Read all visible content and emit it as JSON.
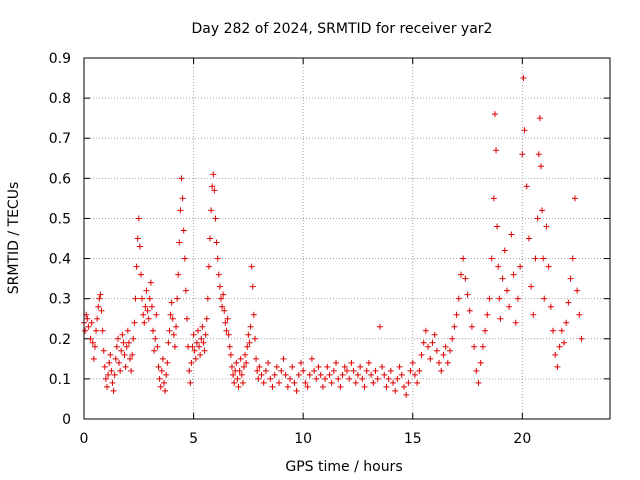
{
  "chart_data": {
    "type": "scatter",
    "title": "Day 282 of 2024, SRMTID for receiver yar2",
    "xlabel": "GPS time / hours",
    "ylabel": "SRMTID / TECUs",
    "xlim": [
      0,
      24
    ],
    "ylim": [
      0,
      0.9
    ],
    "xticks": [
      0,
      5,
      10,
      15,
      20
    ],
    "yticks": [
      0,
      0.1,
      0.2,
      0.3,
      0.4,
      0.5,
      0.6,
      0.7,
      0.8,
      0.9
    ],
    "xtick_labels": [
      "0",
      "5",
      "10",
      "15",
      "20"
    ],
    "ytick_labels": [
      "0",
      "0.1",
      "0.2",
      "0.3",
      "0.4",
      "0.5",
      "0.6",
      "0.7",
      "0.8",
      "0.9"
    ],
    "grid": true,
    "marker": "+",
    "color": "#e00000",
    "series": [
      {
        "name": "yar2",
        "points": [
          [
            0.0,
            0.24
          ],
          [
            0.05,
            0.22
          ],
          [
            0.1,
            0.26
          ],
          [
            0.15,
            0.25
          ],
          [
            0.2,
            0.23
          ],
          [
            0.3,
            0.2
          ],
          [
            0.35,
            0.24
          ],
          [
            0.4,
            0.19
          ],
          [
            0.45,
            0.15
          ],
          [
            0.5,
            0.18
          ],
          [
            0.55,
            0.22
          ],
          [
            0.6,
            0.25
          ],
          [
            0.65,
            0.28
          ],
          [
            0.7,
            0.3
          ],
          [
            0.75,
            0.31
          ],
          [
            0.8,
            0.27
          ],
          [
            0.85,
            0.22
          ],
          [
            0.9,
            0.17
          ],
          [
            0.95,
            0.13
          ],
          [
            1.0,
            0.1
          ],
          [
            1.05,
            0.08
          ],
          [
            1.1,
            0.11
          ],
          [
            1.15,
            0.14
          ],
          [
            1.2,
            0.16
          ],
          [
            1.25,
            0.12
          ],
          [
            1.3,
            0.09
          ],
          [
            1.35,
            0.07
          ],
          [
            1.4,
            0.11
          ],
          [
            1.45,
            0.15
          ],
          [
            1.5,
            0.18
          ],
          [
            1.55,
            0.2
          ],
          [
            1.6,
            0.14
          ],
          [
            1.65,
            0.12
          ],
          [
            1.7,
            0.17
          ],
          [
            1.75,
            0.21
          ],
          [
            1.8,
            0.19
          ],
          [
            1.85,
            0.16
          ],
          [
            1.9,
            0.13
          ],
          [
            1.95,
            0.18
          ],
          [
            2.0,
            0.22
          ],
          [
            2.05,
            0.19
          ],
          [
            2.1,
            0.15
          ],
          [
            2.15,
            0.12
          ],
          [
            2.2,
            0.16
          ],
          [
            2.25,
            0.2
          ],
          [
            2.3,
            0.24
          ],
          [
            2.35,
            0.3
          ],
          [
            2.4,
            0.38
          ],
          [
            2.45,
            0.45
          ],
          [
            2.5,
            0.5
          ],
          [
            2.55,
            0.43
          ],
          [
            2.6,
            0.36
          ],
          [
            2.65,
            0.3
          ],
          [
            2.7,
            0.26
          ],
          [
            2.75,
            0.24
          ],
          [
            2.8,
            0.28
          ],
          [
            2.85,
            0.32
          ],
          [
            2.9,
            0.27
          ],
          [
            2.95,
            0.25
          ],
          [
            3.0,
            0.3
          ],
          [
            3.05,
            0.34
          ],
          [
            3.1,
            0.28
          ],
          [
            3.15,
            0.22
          ],
          [
            3.2,
            0.17
          ],
          [
            3.25,
            0.2
          ],
          [
            3.3,
            0.26
          ],
          [
            3.35,
            0.18
          ],
          [
            3.4,
            0.13
          ],
          [
            3.45,
            0.1
          ],
          [
            3.5,
            0.08
          ],
          [
            3.55,
            0.12
          ],
          [
            3.6,
            0.15
          ],
          [
            3.65,
            0.09
          ],
          [
            3.7,
            0.07
          ],
          [
            3.75,
            0.11
          ],
          [
            3.8,
            0.14
          ],
          [
            3.85,
            0.19
          ],
          [
            3.9,
            0.22
          ],
          [
            3.95,
            0.26
          ],
          [
            4.0,
            0.29
          ],
          [
            4.05,
            0.25
          ],
          [
            4.1,
            0.21
          ],
          [
            4.15,
            0.18
          ],
          [
            4.2,
            0.23
          ],
          [
            4.25,
            0.3
          ],
          [
            4.3,
            0.36
          ],
          [
            4.35,
            0.44
          ],
          [
            4.4,
            0.52
          ],
          [
            4.45,
            0.6
          ],
          [
            4.5,
            0.55
          ],
          [
            4.55,
            0.47
          ],
          [
            4.6,
            0.4
          ],
          [
            4.65,
            0.32
          ],
          [
            4.7,
            0.25
          ],
          [
            4.75,
            0.18
          ],
          [
            4.8,
            0.12
          ],
          [
            4.85,
            0.09
          ],
          [
            4.9,
            0.14
          ],
          [
            4.95,
            0.18
          ],
          [
            5.0,
            0.21
          ],
          [
            5.05,
            0.17
          ],
          [
            5.1,
            0.15
          ],
          [
            5.15,
            0.19
          ],
          [
            5.2,
            0.22
          ],
          [
            5.25,
            0.18
          ],
          [
            5.3,
            0.16
          ],
          [
            5.35,
            0.2
          ],
          [
            5.4,
            0.23
          ],
          [
            5.45,
            0.19
          ],
          [
            5.5,
            0.17
          ],
          [
            5.55,
            0.21
          ],
          [
            5.6,
            0.25
          ],
          [
            5.65,
            0.3
          ],
          [
            5.7,
            0.38
          ],
          [
            5.75,
            0.45
          ],
          [
            5.8,
            0.52
          ],
          [
            5.85,
            0.58
          ],
          [
            5.9,
            0.61
          ],
          [
            5.95,
            0.57
          ],
          [
            6.0,
            0.5
          ],
          [
            6.05,
            0.44
          ],
          [
            6.1,
            0.4
          ],
          [
            6.15,
            0.36
          ],
          [
            6.2,
            0.33
          ],
          [
            6.25,
            0.3
          ],
          [
            6.3,
            0.28
          ],
          [
            6.35,
            0.31
          ],
          [
            6.4,
            0.27
          ],
          [
            6.45,
            0.24
          ],
          [
            6.5,
            0.22
          ],
          [
            6.55,
            0.25
          ],
          [
            6.6,
            0.21
          ],
          [
            6.65,
            0.18
          ],
          [
            6.7,
            0.16
          ],
          [
            6.75,
            0.13
          ],
          [
            6.8,
            0.11
          ],
          [
            6.85,
            0.09
          ],
          [
            6.9,
            0.12
          ],
          [
            6.95,
            0.14
          ],
          [
            7.0,
            0.1
          ],
          [
            7.05,
            0.08
          ],
          [
            7.1,
            0.12
          ],
          [
            7.15,
            0.15
          ],
          [
            7.2,
            0.11
          ],
          [
            7.25,
            0.09
          ],
          [
            7.3,
            0.13
          ],
          [
            7.35,
            0.16
          ],
          [
            7.4,
            0.14
          ],
          [
            7.45,
            0.18
          ],
          [
            7.5,
            0.21
          ],
          [
            7.55,
            0.19
          ],
          [
            7.6,
            0.23
          ],
          [
            7.65,
            0.38
          ],
          [
            7.7,
            0.33
          ],
          [
            7.75,
            0.26
          ],
          [
            7.8,
            0.2
          ],
          [
            7.85,
            0.15
          ],
          [
            7.9,
            0.12
          ],
          [
            7.95,
            0.1
          ],
          [
            8.0,
            0.13
          ],
          [
            8.1,
            0.11
          ],
          [
            8.2,
            0.09
          ],
          [
            8.3,
            0.12
          ],
          [
            8.4,
            0.14
          ],
          [
            8.5,
            0.1
          ],
          [
            8.6,
            0.08
          ],
          [
            8.7,
            0.11
          ],
          [
            8.8,
            0.13
          ],
          [
            8.9,
            0.09
          ],
          [
            9.0,
            0.12
          ],
          [
            9.1,
            0.15
          ],
          [
            9.2,
            0.11
          ],
          [
            9.3,
            0.08
          ],
          [
            9.4,
            0.1
          ],
          [
            9.5,
            0.13
          ],
          [
            9.6,
            0.09
          ],
          [
            9.7,
            0.07
          ],
          [
            9.8,
            0.11
          ],
          [
            9.9,
            0.14
          ],
          [
            10.0,
            0.12
          ],
          [
            10.1,
            0.09
          ],
          [
            10.2,
            0.08
          ],
          [
            10.3,
            0.11
          ],
          [
            10.4,
            0.15
          ],
          [
            10.5,
            0.12
          ],
          [
            10.6,
            0.1
          ],
          [
            10.7,
            0.13
          ],
          [
            10.8,
            0.11
          ],
          [
            10.9,
            0.08
          ],
          [
            11.0,
            0.1
          ],
          [
            11.1,
            0.13
          ],
          [
            11.2,
            0.11
          ],
          [
            11.3,
            0.09
          ],
          [
            11.4,
            0.12
          ],
          [
            11.5,
            0.14
          ],
          [
            11.6,
            0.1
          ],
          [
            11.7,
            0.08
          ],
          [
            11.8,
            0.11
          ],
          [
            11.9,
            0.13
          ],
          [
            12.0,
            0.12
          ],
          [
            12.1,
            0.1
          ],
          [
            12.2,
            0.14
          ],
          [
            12.3,
            0.12
          ],
          [
            12.4,
            0.09
          ],
          [
            12.5,
            0.11
          ],
          [
            12.6,
            0.13
          ],
          [
            12.7,
            0.1
          ],
          [
            12.8,
            0.08
          ],
          [
            12.9,
            0.12
          ],
          [
            13.0,
            0.14
          ],
          [
            13.1,
            0.11
          ],
          [
            13.2,
            0.09
          ],
          [
            13.3,
            0.12
          ],
          [
            13.4,
            0.1
          ],
          [
            13.5,
            0.23
          ],
          [
            13.6,
            0.13
          ],
          [
            13.7,
            0.11
          ],
          [
            13.8,
            0.08
          ],
          [
            13.9,
            0.1
          ],
          [
            14.0,
            0.12
          ],
          [
            14.1,
            0.09
          ],
          [
            14.2,
            0.07
          ],
          [
            14.3,
            0.1
          ],
          [
            14.4,
            0.13
          ],
          [
            14.5,
            0.11
          ],
          [
            14.6,
            0.08
          ],
          [
            14.7,
            0.06
          ],
          [
            14.8,
            0.09
          ],
          [
            14.9,
            0.12
          ],
          [
            15.0,
            0.14
          ],
          [
            15.1,
            0.11
          ],
          [
            15.2,
            0.09
          ],
          [
            15.3,
            0.12
          ],
          [
            15.4,
            0.16
          ],
          [
            15.5,
            0.19
          ],
          [
            15.6,
            0.22
          ],
          [
            15.7,
            0.18
          ],
          [
            15.8,
            0.15
          ],
          [
            15.9,
            0.19
          ],
          [
            16.0,
            0.21
          ],
          [
            16.1,
            0.17
          ],
          [
            16.2,
            0.14
          ],
          [
            16.3,
            0.12
          ],
          [
            16.4,
            0.16
          ],
          [
            16.5,
            0.18
          ],
          [
            16.6,
            0.14
          ],
          [
            16.7,
            0.17
          ],
          [
            16.8,
            0.2
          ],
          [
            16.9,
            0.23
          ],
          [
            17.0,
            0.26
          ],
          [
            17.1,
            0.3
          ],
          [
            17.2,
            0.36
          ],
          [
            17.3,
            0.4
          ],
          [
            17.4,
            0.35
          ],
          [
            17.5,
            0.31
          ],
          [
            17.6,
            0.27
          ],
          [
            17.7,
            0.23
          ],
          [
            17.8,
            0.18
          ],
          [
            17.9,
            0.12
          ],
          [
            18.0,
            0.09
          ],
          [
            18.1,
            0.14
          ],
          [
            18.2,
            0.18
          ],
          [
            18.3,
            0.22
          ],
          [
            18.4,
            0.26
          ],
          [
            18.5,
            0.3
          ],
          [
            18.6,
            0.4
          ],
          [
            18.7,
            0.55
          ],
          [
            18.75,
            0.76
          ],
          [
            18.8,
            0.67
          ],
          [
            18.85,
            0.48
          ],
          [
            18.9,
            0.38
          ],
          [
            18.95,
            0.3
          ],
          [
            19.0,
            0.25
          ],
          [
            19.1,
            0.35
          ],
          [
            19.2,
            0.42
          ],
          [
            19.3,
            0.32
          ],
          [
            19.4,
            0.28
          ],
          [
            19.5,
            0.46
          ],
          [
            19.6,
            0.36
          ],
          [
            19.7,
            0.24
          ],
          [
            19.8,
            0.3
          ],
          [
            19.9,
            0.38
          ],
          [
            20.0,
            0.66
          ],
          [
            20.05,
            0.85
          ],
          [
            20.1,
            0.72
          ],
          [
            20.2,
            0.58
          ],
          [
            20.3,
            0.45
          ],
          [
            20.4,
            0.33
          ],
          [
            20.5,
            0.26
          ],
          [
            20.6,
            0.4
          ],
          [
            20.7,
            0.5
          ],
          [
            20.75,
            0.66
          ],
          [
            20.8,
            0.75
          ],
          [
            20.85,
            0.63
          ],
          [
            20.9,
            0.52
          ],
          [
            20.95,
            0.4
          ],
          [
            21.0,
            0.3
          ],
          [
            21.1,
            0.48
          ],
          [
            21.2,
            0.38
          ],
          [
            21.3,
            0.28
          ],
          [
            21.4,
            0.22
          ],
          [
            21.5,
            0.16
          ],
          [
            21.6,
            0.13
          ],
          [
            21.7,
            0.18
          ],
          [
            21.8,
            0.22
          ],
          [
            21.9,
            0.19
          ],
          [
            22.0,
            0.24
          ],
          [
            22.1,
            0.29
          ],
          [
            22.2,
            0.35
          ],
          [
            22.3,
            0.4
          ],
          [
            22.4,
            0.55
          ],
          [
            22.5,
            0.32
          ],
          [
            22.6,
            0.26
          ],
          [
            22.7,
            0.2
          ]
        ]
      }
    ]
  }
}
